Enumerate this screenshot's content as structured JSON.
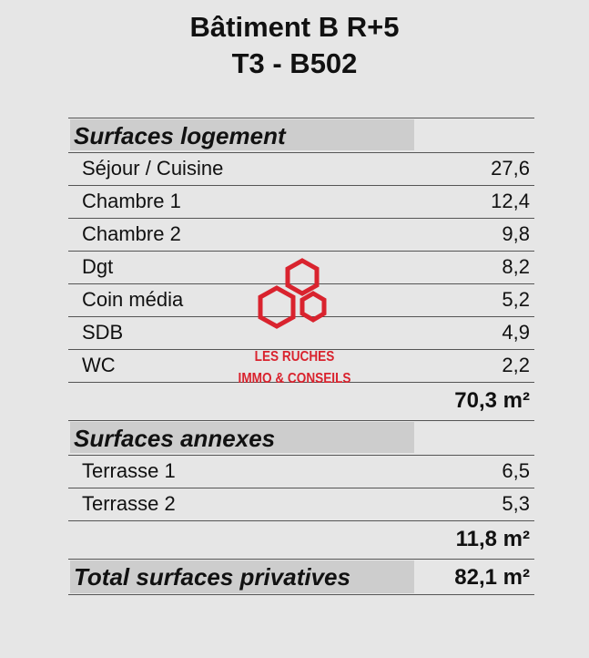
{
  "header": {
    "title": "Bâtiment B R+5",
    "subtitle": "T3 - B502"
  },
  "sections": [
    {
      "title": "Surfaces logement",
      "rows": [
        [
          "Séjour / Cuisine",
          "27,6"
        ],
        [
          "Chambre 1",
          "12,4"
        ],
        [
          "Chambre 2",
          "9,8"
        ],
        [
          "Dgt",
          "8,2"
        ],
        [
          "Coin média",
          "5,2"
        ],
        [
          "SDB",
          "4,9"
        ],
        [
          "WC",
          "2,2"
        ]
      ],
      "total": "70,3 m²"
    },
    {
      "title": "Surfaces annexes",
      "rows": [
        [
          "Terrasse 1",
          "6,5"
        ],
        [
          "Terrasse 2",
          "5,3"
        ]
      ],
      "total": "11,8 m²"
    }
  ],
  "grand_total": {
    "label": "Total surfaces privatives",
    "value": "82,1 m²"
  },
  "logo": {
    "line1": "LES RUCHES",
    "line2": "IMMO & CONSEILS"
  }
}
